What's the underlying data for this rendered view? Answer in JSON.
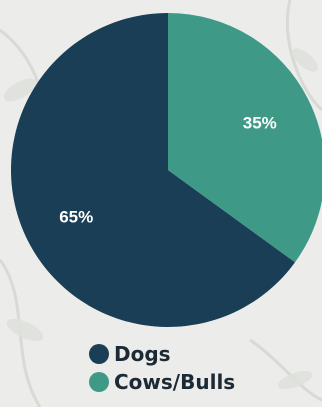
{
  "chart_data": {
    "type": "pie",
    "categories": [
      "Dogs",
      "Cows/Bulls"
    ],
    "values": [
      65,
      35
    ],
    "labels": [
      "65%",
      "35%"
    ],
    "colors": [
      "#193e55",
      "#3e9a87"
    ],
    "start_angle_deg": 0,
    "direction": "counter-clockwise",
    "legend_position": "bottom-center"
  },
  "legend": [
    {
      "label": "Dogs",
      "color": "#193e55"
    },
    {
      "label": "Cows/Bulls",
      "color": "#3e9a87"
    }
  ],
  "background_color": "#ececea"
}
